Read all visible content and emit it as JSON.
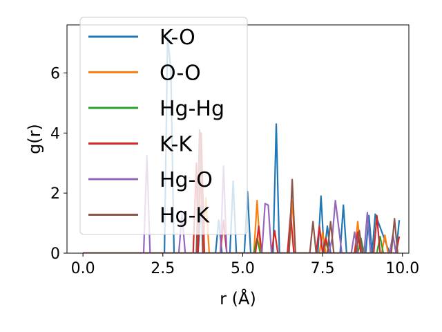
{
  "chart_data": {
    "type": "line",
    "title": "",
    "xlabel": "r (Å)",
    "ylabel": "g(r)",
    "xlim": [
      -0.5,
      10.2
    ],
    "ylim": [
      0,
      7.6
    ],
    "xticks": [
      0.0,
      2.5,
      5.0,
      7.5,
      10.0
    ],
    "xtick_labels": [
      "0.0",
      "2.5",
      "5.0",
      "7.5",
      "10.0"
    ],
    "yticks": [
      0,
      2,
      4,
      6
    ],
    "ytick_labels": [
      "0",
      "2",
      "4",
      "6"
    ],
    "grid": false,
    "legend_position": "upper-left",
    "series": [
      {
        "name": "K-O",
        "color": "#1f77b4",
        "x": [
          0,
          2.55,
          2.65,
          2.75,
          2.85,
          3.6,
          3.7,
          3.8,
          4.15,
          4.25,
          4.35,
          4.6,
          4.7,
          4.8,
          5.05,
          5.15,
          5.25,
          5.95,
          6.05,
          6.15,
          7.35,
          7.45,
          7.55,
          7.65,
          7.75,
          7.85,
          8.05,
          8.15,
          8.25,
          8.85,
          8.95,
          9.05,
          9.15,
          9.6,
          9.7,
          9.8,
          9.9
        ],
        "y": [
          0,
          0,
          7.2,
          6.1,
          0,
          0,
          1.6,
          0,
          0,
          1.1,
          0,
          0,
          2.4,
          0,
          0,
          2.05,
          0,
          0,
          4.3,
          0,
          0,
          1.9,
          0,
          0.9,
          0,
          0,
          0,
          1.6,
          0,
          0,
          1.25,
          0,
          1.3,
          0,
          0.6,
          0,
          1.1
        ]
      },
      {
        "name": "O-O",
        "color": "#ff7f0e",
        "x": [
          0,
          3.75,
          3.85,
          3.95,
          4.05,
          5.35,
          5.45,
          5.55,
          5.65,
          6.45,
          6.55,
          6.65,
          6.75,
          7.4,
          7.5,
          7.6,
          8.5,
          8.6,
          8.7,
          8.8,
          9.35,
          9.45,
          9.55,
          9.65
        ],
        "y": [
          0,
          0,
          1.85,
          0,
          0,
          0,
          1.75,
          0,
          0,
          0,
          1.75,
          0,
          0,
          0,
          0.7,
          0,
          0,
          1.05,
          0,
          0,
          0,
          0.6,
          0,
          0
        ]
      },
      {
        "name": "Hg-Hg",
        "color": "#2ca02c",
        "x": [
          0,
          5.35,
          5.45,
          5.55,
          7.5,
          7.6,
          7.7,
          8.6,
          8.7,
          8.8,
          9.2,
          9.3,
          9.4
        ],
        "y": [
          0,
          0,
          0.5,
          0,
          0,
          0.4,
          0,
          0,
          0.5,
          0,
          0,
          0.55,
          0
        ]
      },
      {
        "name": "K-K",
        "color": "#d62728",
        "x": [
          0,
          3.45,
          3.55,
          3.6,
          3.7,
          3.8,
          3.9,
          4.3,
          4.4,
          4.5,
          5.4,
          5.5,
          5.6,
          5.9,
          6.0,
          6.1,
          6.4,
          6.5,
          6.6,
          7.3,
          7.4,
          7.5,
          7.6,
          7.7,
          8.5,
          8.6,
          8.7,
          9.1,
          9.2,
          9.3,
          9.8,
          9.9
        ],
        "y": [
          0,
          0,
          3.0,
          0,
          4.0,
          0,
          0,
          0,
          1.1,
          0,
          0,
          0.9,
          0,
          0,
          0.75,
          0,
          0,
          1.3,
          0,
          0,
          0.9,
          0,
          0.5,
          0,
          0,
          0.7,
          0,
          0,
          1.25,
          0,
          0,
          0.55
        ]
      },
      {
        "name": "Hg-O",
        "color": "#9467bd",
        "x": [
          0,
          1.9,
          2.0,
          2.1,
          3.0,
          3.1,
          3.2,
          4.3,
          4.4,
          4.5,
          5.6,
          5.7,
          5.8,
          5.9,
          6.0,
          7.7,
          7.8,
          7.9,
          8.0,
          8.1,
          8.4,
          8.5,
          8.6,
          8.8,
          8.9,
          9.0,
          9.6,
          9.7,
          9.8
        ],
        "y": [
          0,
          0,
          3.25,
          0,
          0,
          1.3,
          0,
          0,
          2.9,
          0,
          0,
          1.65,
          1.6,
          0,
          0,
          0,
          0.5,
          1.75,
          0.9,
          0,
          0,
          0.7,
          0,
          0,
          1.35,
          0,
          0,
          0.6,
          0
        ]
      },
      {
        "name": "Hg-K",
        "color": "#8c564b",
        "x": [
          0,
          3.55,
          3.65,
          3.75,
          6.45,
          6.55,
          6.65,
          7.1,
          7.2,
          7.3,
          7.65,
          7.75,
          7.85,
          8.55,
          8.65,
          8.75,
          9.65,
          9.75,
          9.85
        ],
        "y": [
          0,
          0,
          4.1,
          0,
          0,
          2.45,
          0,
          0,
          1.05,
          0,
          0,
          1.05,
          0,
          0,
          0.75,
          0,
          0,
          1.15,
          0
        ]
      }
    ]
  }
}
